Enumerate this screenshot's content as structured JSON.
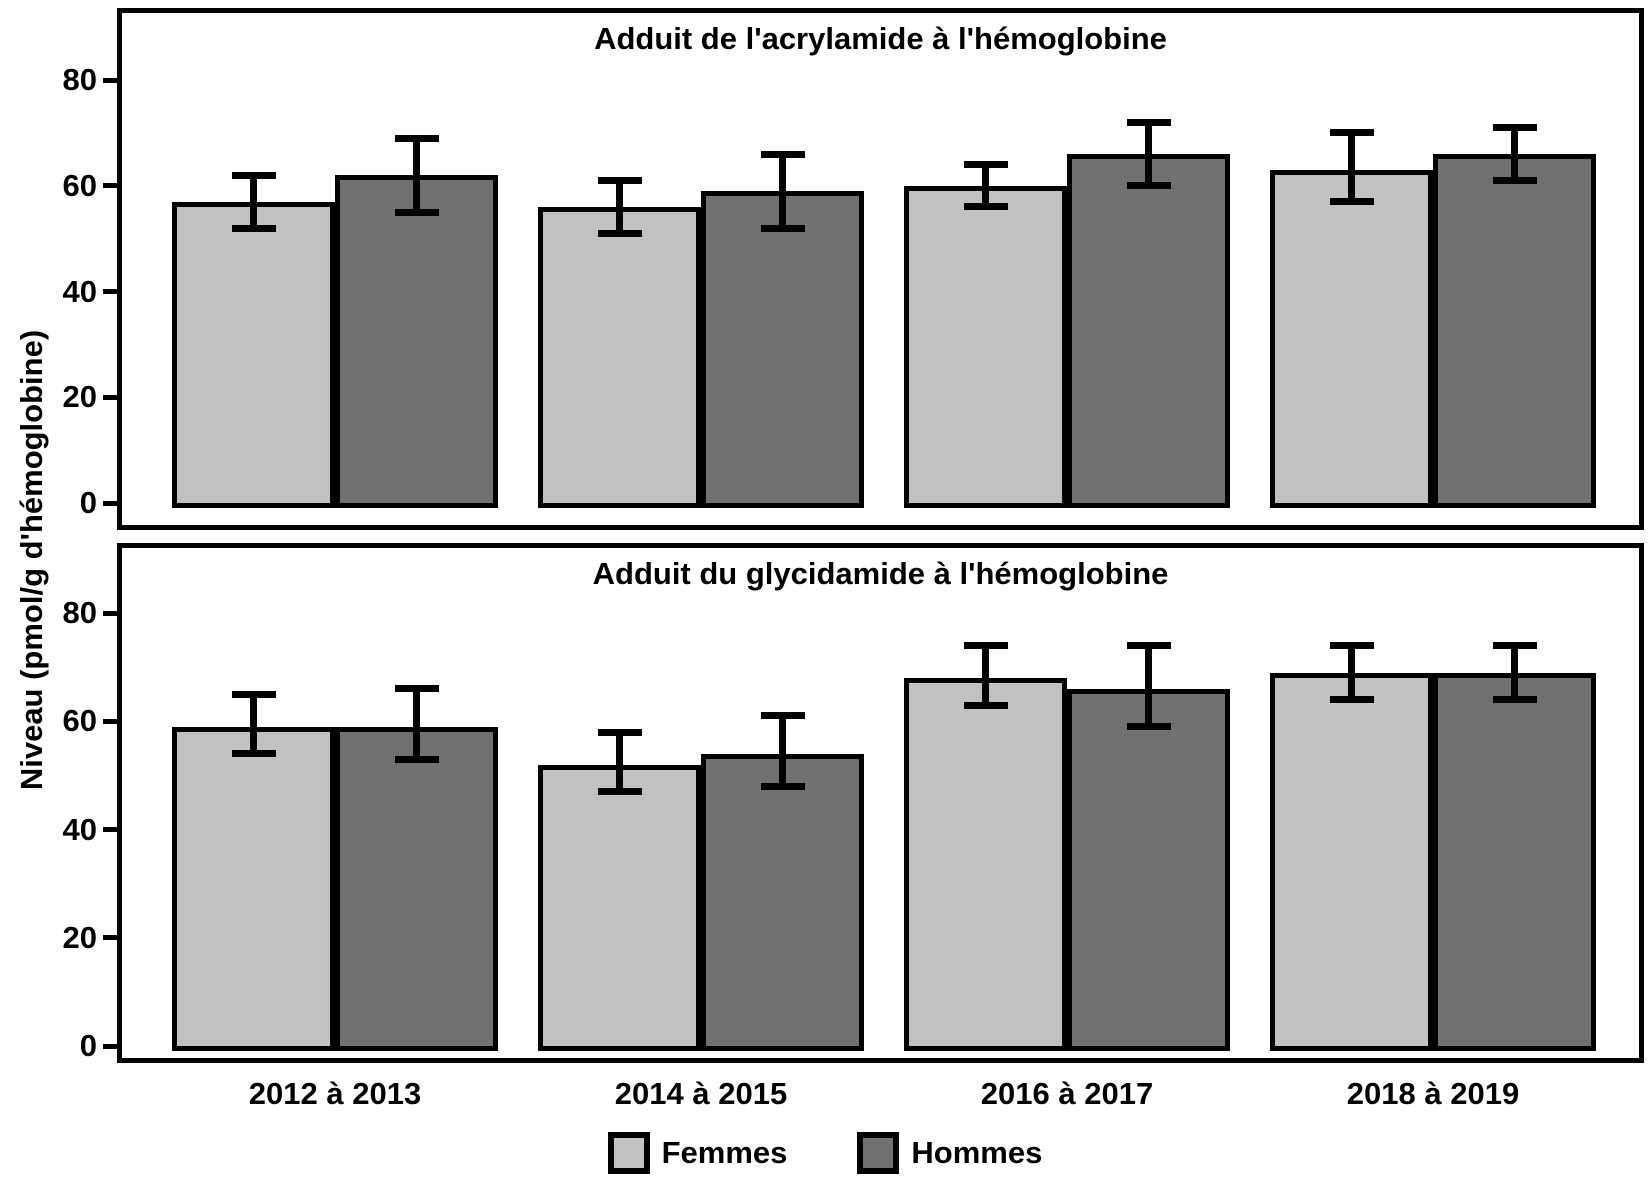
{
  "figure": {
    "y_axis_label": "Niveau (pmol/g d'hémoglobine)",
    "background_color": "#ffffff",
    "axis_color": "#000000",
    "legend": [
      {
        "label": "Femmes",
        "color": "#c1c1c1"
      },
      {
        "label": "Hommes",
        "color": "#717171"
      }
    ]
  },
  "chart_data": [
    {
      "type": "bar",
      "title": "Adduit de l'acrylamide à l'hémoglobine",
      "categories": [
        "2012 à 2013",
        "2014 à 2015",
        "2016 à 2017",
        "2018 à 2019"
      ],
      "ylabel": "Niveau (pmol/g d'hémoglobine)",
      "ylim": [
        0,
        92
      ],
      "yticks": [
        0,
        20,
        40,
        60,
        80
      ],
      "grid": false,
      "error_bars": true,
      "series": [
        {
          "name": "Femmes",
          "color": "#c1c1c1",
          "values": [
            57,
            56,
            60,
            63
          ],
          "ci_low": [
            52,
            51,
            56,
            57
          ],
          "ci_high": [
            62,
            61,
            64,
            70
          ]
        },
        {
          "name": "Hommes",
          "color": "#717171",
          "values": [
            62,
            59,
            66,
            66
          ],
          "ci_low": [
            55,
            52,
            60,
            61
          ],
          "ci_high": [
            69,
            66,
            72,
            71
          ]
        }
      ]
    },
    {
      "type": "bar",
      "title": "Adduit du glycidamide à l'hémoglobine",
      "categories": [
        "2012 à 2013",
        "2014 à 2015",
        "2016 à 2017",
        "2018 à 2019"
      ],
      "ylabel": "Niveau (pmol/g d'hémoglobine)",
      "ylim": [
        0,
        92
      ],
      "yticks": [
        0,
        20,
        40,
        60,
        80
      ],
      "grid": false,
      "error_bars": true,
      "series": [
        {
          "name": "Femmes",
          "color": "#c1c1c1",
          "values": [
            59,
            52,
            68,
            69
          ],
          "ci_low": [
            54,
            47,
            63,
            64
          ],
          "ci_high": [
            65,
            58,
            74,
            74
          ]
        },
        {
          "name": "Hommes",
          "color": "#717171",
          "values": [
            59,
            54,
            66,
            69
          ],
          "ci_low": [
            53,
            48,
            59,
            64
          ],
          "ci_high": [
            66,
            61,
            74,
            74
          ]
        }
      ]
    }
  ]
}
